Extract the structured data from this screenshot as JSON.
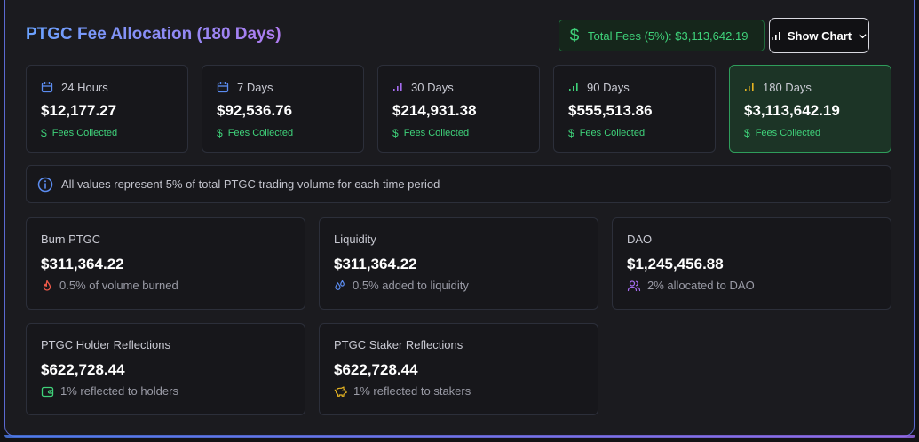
{
  "header": {
    "title": "PTGC Fee Allocation (180 Days)",
    "total_fees_label": "Total Fees (5%): $3,113,642.19",
    "show_chart_label": "Show Chart"
  },
  "periods": [
    {
      "label": "24 Hours",
      "value": "$12,177.27",
      "sub": "Fees Collected",
      "icon": "calendar-icon",
      "active": false
    },
    {
      "label": "7 Days",
      "value": "$92,536.76",
      "sub": "Fees Collected",
      "icon": "calendar-icon",
      "active": false
    },
    {
      "label": "30 Days",
      "value": "$214,931.38",
      "sub": "Fees Collected",
      "icon": "bar-chart-icon",
      "active": false
    },
    {
      "label": "90 Days",
      "value": "$555,513.86",
      "sub": "Fees Collected",
      "icon": "bar-chart-icon",
      "active": false
    },
    {
      "label": "180 Days",
      "value": "$3,113,642.19",
      "sub": "Fees Collected",
      "icon": "bar-chart-icon",
      "active": true
    }
  ],
  "info": {
    "text": "All values represent 5% of total PTGC trading volume for each time period"
  },
  "allocations": {
    "burn": {
      "label": "Burn PTGC",
      "value": "$311,364.22",
      "sub": "0.5% of volume burned",
      "icon": "flame-icon"
    },
    "liquidity": {
      "label": "Liquidity",
      "value": "$311,364.22",
      "sub": "0.5% added to liquidity",
      "icon": "droplets-icon"
    },
    "dao": {
      "label": "DAO",
      "value": "$1,245,456.88",
      "sub": "2% allocated to DAO",
      "icon": "users-icon"
    },
    "holders": {
      "label": "PTGC Holder Reflections",
      "value": "$622,728.44",
      "sub": "1% reflected to holders",
      "icon": "wallet-icon"
    },
    "stakers": {
      "label": "PTGC Staker Reflections",
      "value": "$622,728.44",
      "sub": "1% reflected to stakers",
      "icon": "piggy-bank-icon"
    }
  },
  "colors": {
    "accent_green": "#3fd27a",
    "accent_blue": "#5b8cf0",
    "accent_purple": "#a56cf0",
    "accent_yellow": "#e6b422",
    "panel_border": "#5b6ad0"
  }
}
